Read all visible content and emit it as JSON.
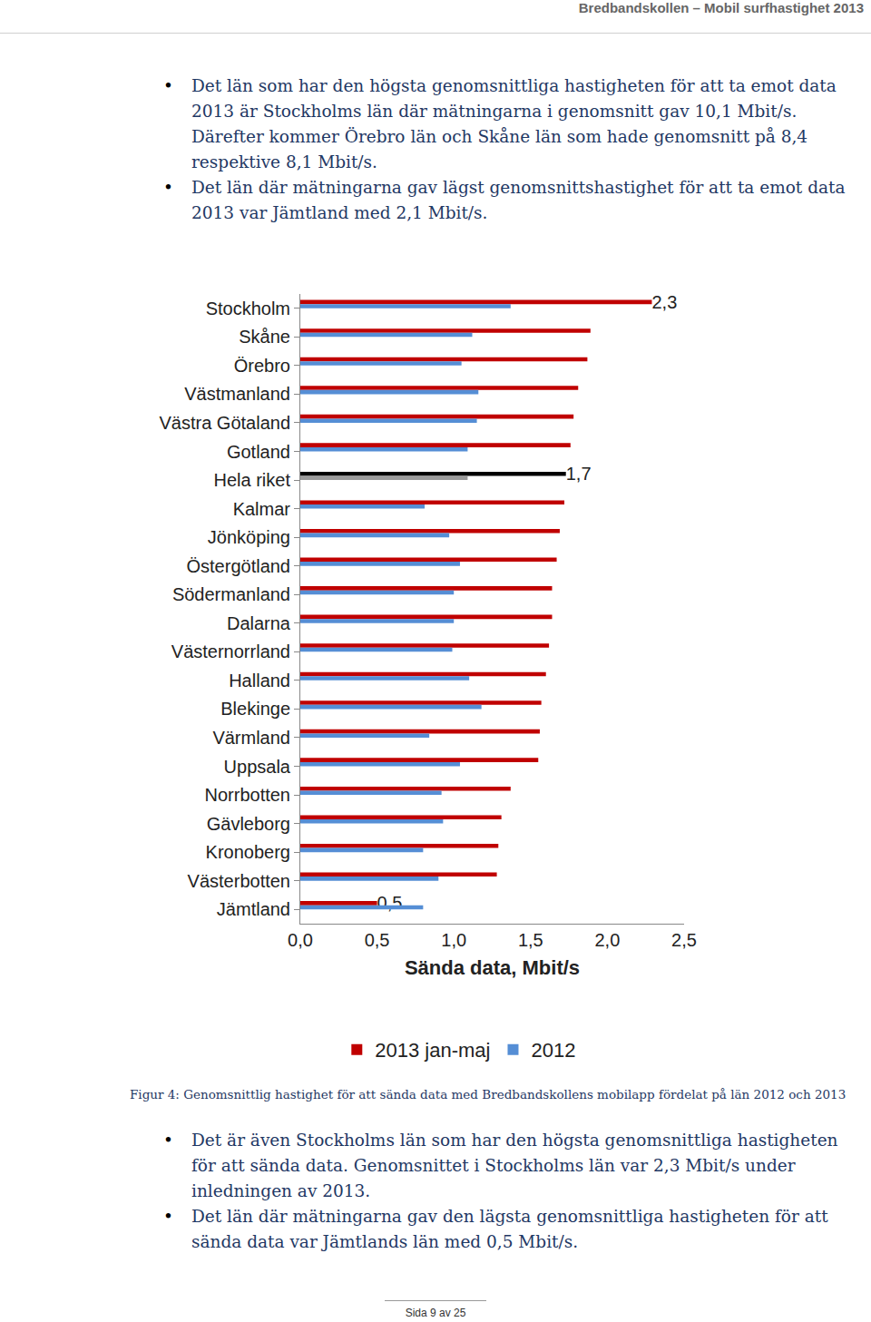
{
  "header": "Bredbandskollen – Mobil surfhastighet 2013",
  "bullets_top": [
    "Det län som har den högsta genomsnittliga hastigheten för att ta emot data 2013 är Stockholms län där mätningarna i genomsnitt gav 10,1 Mbit/s. Därefter kommer Örebro län och Skåne län som hade genomsnitt på 8,4 respektive 8,1 Mbit/s.",
    "Det län där mätningarna gav lägst genomsnittshastighet för att ta emot data 2013 var Jämtland med 2,1 Mbit/s."
  ],
  "chart_data": {
    "type": "bar",
    "orientation": "horizontal",
    "x_label": "Sända data, Mbit/s",
    "categories": [
      "Stockholm",
      "Skåne",
      "Örebro",
      "Västmanland",
      "Västra Götaland",
      "Gotland",
      "Hela riket",
      "Kalmar",
      "Jönköping",
      "Östergötland",
      "Södermanland",
      "Dalarna",
      "Västernorrland",
      "Halland",
      "Blekinge",
      "Värmland",
      "Uppsala",
      "Norrbotten",
      "Gävleborg",
      "Kronoberg",
      "Västerbotten",
      "Jämtland"
    ],
    "series": [
      {
        "name": "2013 jan-maj",
        "color": "#c00000",
        "colors": [
          "#c00000",
          "#c00000",
          "#c00000",
          "#c00000",
          "#c00000",
          "#c00000",
          "#000000",
          "#c00000",
          "#c00000",
          "#c00000",
          "#c00000",
          "#c00000",
          "#c00000",
          "#c00000",
          "#c00000",
          "#c00000",
          "#c00000",
          "#c00000",
          "#c00000",
          "#c00000",
          "#c00000",
          "#c00000"
        ],
        "values": [
          2.29,
          1.89,
          1.87,
          1.81,
          1.78,
          1.76,
          1.73,
          1.72,
          1.69,
          1.67,
          1.64,
          1.64,
          1.62,
          1.6,
          1.57,
          1.56,
          1.55,
          1.37,
          1.31,
          1.29,
          1.28,
          0.5
        ],
        "value_labels": [
          "2,3",
          null,
          null,
          null,
          null,
          null,
          "1,7",
          null,
          null,
          null,
          null,
          null,
          null,
          null,
          null,
          null,
          null,
          null,
          null,
          null,
          null,
          "0,5"
        ]
      },
      {
        "name": "2012",
        "color": "#558ed5",
        "colors": [
          "#558ed5",
          "#558ed5",
          "#558ed5",
          "#558ed5",
          "#558ed5",
          "#558ed5",
          "#999999",
          "#558ed5",
          "#558ed5",
          "#558ed5",
          "#558ed5",
          "#558ed5",
          "#558ed5",
          "#558ed5",
          "#558ed5",
          "#558ed5",
          "#558ed5",
          "#558ed5",
          "#558ed5",
          "#558ed5",
          "#558ed5",
          "#558ed5"
        ],
        "values": [
          1.37,
          1.12,
          1.05,
          1.16,
          1.15,
          1.09,
          1.09,
          0.81,
          0.97,
          1.04,
          1.0,
          1.0,
          0.99,
          1.1,
          1.18,
          0.84,
          1.04,
          0.92,
          0.93,
          0.8,
          0.9,
          0.8
        ]
      }
    ],
    "xlim": [
      0,
      2.5
    ],
    "xticks": [
      {
        "value": 0,
        "label": "0,0"
      },
      {
        "value": 0.5,
        "label": "0,5"
      },
      {
        "value": 1,
        "label": "1,0"
      },
      {
        "value": 1.5,
        "label": "1,5"
      },
      {
        "value": 2,
        "label": "2,0"
      },
      {
        "value": 2.5,
        "label": "2,5"
      }
    ],
    "grid": false,
    "legend": "bottom"
  },
  "caption": "Figur 4: Genomsnittlig hastighet för att sända data med Bredbandskollens mobilapp fördelat på län 2012 och 2013",
  "bullets_bottom": [
    "Det är även Stockholms län som har den högsta genomsnittliga hastigheten för att sända data. Genomsnittet i Stockholms län var 2,3 Mbit/s under inledningen av 2013.",
    "Det län där mätningarna gav den lägsta genomsnittliga hastigheten för att sända data var Jämtlands län med 0,5 Mbit/s."
  ],
  "footer": "Sida 9 av 25"
}
